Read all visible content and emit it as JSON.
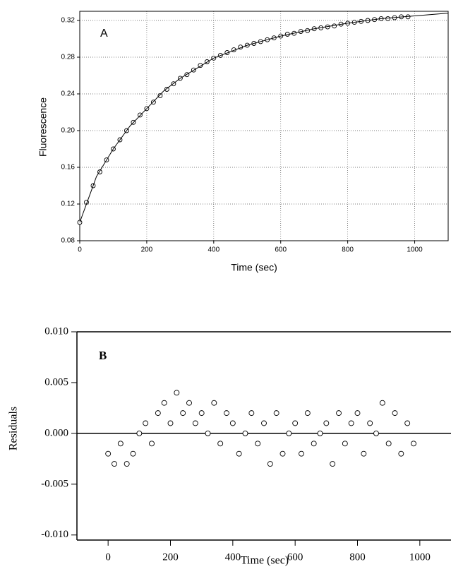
{
  "chart_data": [
    {
      "type": "scatter",
      "annotation": "A",
      "x_label": "Time (sec)",
      "y_label": "Fluorescence",
      "xlim": [
        0,
        1100
      ],
      "ylim": [
        0.08,
        0.33
      ],
      "xticks": [
        0,
        200,
        400,
        600,
        800,
        1000
      ],
      "yticks": [
        0.08,
        0.12,
        0.16,
        {
          "value": 0.2,
          "label": "0.20"
        },
        0.24,
        0.28,
        0.32
      ],
      "grid": true,
      "series": [
        {
          "type": "scatter",
          "color": "#000000",
          "x": [
            0,
            20,
            40,
            60,
            80,
            100,
            120,
            140,
            160,
            180,
            200,
            220,
            240,
            260,
            280,
            300,
            320,
            340,
            360,
            380,
            400,
            420,
            440,
            460,
            480,
            500,
            520,
            540,
            560,
            580,
            600,
            620,
            640,
            660,
            680,
            700,
            720,
            740,
            760,
            780,
            800,
            820,
            840,
            860,
            880,
            900,
            920,
            940,
            960,
            980
          ],
          "values": [
            0.1,
            0.122,
            0.14,
            0.155,
            0.168,
            0.18,
            0.19,
            0.2,
            0.209,
            0.217,
            0.224,
            0.231,
            0.238,
            0.245,
            0.251,
            0.257,
            0.261,
            0.266,
            0.271,
            0.275,
            0.279,
            0.282,
            0.285,
            0.288,
            0.291,
            0.293,
            0.295,
            0.297,
            0.299,
            0.301,
            0.303,
            0.305,
            0.306,
            0.308,
            0.309,
            0.311,
            0.312,
            0.313,
            0.314,
            0.316,
            0.317,
            0.318,
            0.319,
            0.32,
            0.321,
            0.322,
            0.322,
            0.323,
            0.324,
            0.324
          ]
        },
        {
          "type": "line",
          "color": "#000000",
          "x": [
            0,
            50,
            100,
            150,
            200,
            250,
            300,
            400,
            500,
            600,
            700,
            800,
            900,
            1000,
            1100
          ],
          "values": [
            0.1,
            0.15,
            0.18,
            0.205,
            0.224,
            0.243,
            0.257,
            0.279,
            0.293,
            0.303,
            0.311,
            0.317,
            0.322,
            0.325,
            0.328
          ]
        }
      ]
    },
    {
      "type": "scatter",
      "annotation": "B",
      "x_label": "Time (sec)",
      "y_label": "Residuals",
      "xlim": [
        -100,
        1100
      ],
      "ylim": [
        -0.0105,
        0.01
      ],
      "xticks": [
        0,
        200,
        400,
        600,
        800,
        1000
      ],
      "yticks": [
        {
          "value": 0.01,
          "label": "0.010"
        },
        {
          "value": 0.005,
          "label": "0.005"
        },
        {
          "value": 0,
          "label": "0.000"
        },
        {
          "value": -0.005,
          "label": "-0.005"
        },
        {
          "value": -0.01,
          "label": "-0.010"
        }
      ],
      "grid": false,
      "reference_line": 0,
      "series": [
        {
          "type": "scatter",
          "color": "#000000",
          "x": [
            0,
            20,
            40,
            60,
            80,
            100,
            120,
            140,
            160,
            180,
            200,
            220,
            240,
            260,
            280,
            300,
            320,
            340,
            360,
            380,
            400,
            420,
            440,
            460,
            480,
            500,
            520,
            540,
            560,
            580,
            600,
            620,
            640,
            660,
            680,
            700,
            720,
            740,
            760,
            780,
            800,
            820,
            840,
            860,
            880,
            900,
            920,
            940,
            960,
            980
          ],
          "values": [
            -0.002,
            -0.003,
            -0.001,
            -0.003,
            -0.002,
            0.0,
            0.001,
            -0.001,
            0.002,
            0.003,
            0.001,
            0.004,
            0.002,
            0.003,
            0.001,
            0.002,
            0.0,
            0.003,
            -0.001,
            0.002,
            0.001,
            -0.002,
            0.0,
            0.002,
            -0.001,
            0.001,
            -0.003,
            0.002,
            -0.002,
            0.0,
            0.001,
            -0.002,
            0.002,
            -0.001,
            0.0,
            0.001,
            -0.003,
            0.002,
            -0.001,
            0.001,
            0.002,
            -0.002,
            0.001,
            0.0,
            0.003,
            -0.001,
            0.002,
            -0.002,
            0.001,
            -0.001
          ]
        }
      ]
    }
  ]
}
